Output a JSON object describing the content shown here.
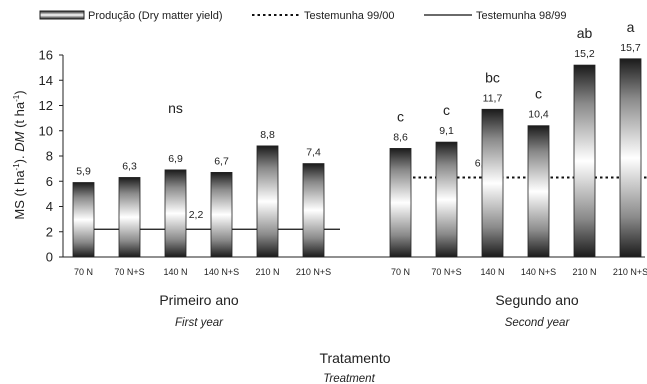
{
  "chart_data": {
    "type": "bar",
    "ylabel": "MS (t ha-1). DM (t ha-1)",
    "ylabel_parts": [
      "MS (t ha",
      "-1",
      "). ",
      "DM",
      " (t ha",
      "-1",
      ")"
    ],
    "ylim": [
      0,
      16
    ],
    "yticks": [
      "0",
      "2",
      "4",
      "6",
      "8",
      "10",
      "12",
      "14",
      "16"
    ],
    "xlabel": "Tratamento",
    "xlabel_en": "Treatment",
    "legend": {
      "position": "top",
      "series": "Produção (Dry matter yield)",
      "ref1": "Testemunha 99/00",
      "ref2": "Testemunha 98/99"
    },
    "groups": [
      {
        "name": "Primeiro ano",
        "name_en": "First year",
        "categories": [
          "70 N",
          "70 N+S",
          "140 N",
          "140 N+S",
          "210 N",
          "210 N+S"
        ],
        "values": [
          5.9,
          6.3,
          6.9,
          6.7,
          8.8,
          7.4
        ],
        "value_labels": [
          "5,9",
          "6,3",
          "6,9",
          "6,7",
          "8,8",
          "7,4"
        ],
        "significance": [
          "",
          "",
          "ns",
          "",
          "",
          ""
        ],
        "reference": {
          "series": "Testemunha 98/99",
          "style": "solid",
          "value": 2.2,
          "label": "2,2"
        }
      },
      {
        "name": "Segundo ano",
        "name_en": "Second year",
        "categories": [
          "70 N",
          "70 N+S",
          "140 N",
          "140 N+S",
          "210 N",
          "210 N+S"
        ],
        "values": [
          8.6,
          9.1,
          11.7,
          10.4,
          15.2,
          15.7
        ],
        "value_labels": [
          "8,6",
          "9,1",
          "11,7",
          "10,4",
          "15,2",
          "15,7"
        ],
        "significance": [
          "c",
          "c",
          "bc",
          "c",
          "ab",
          "a"
        ],
        "reference": {
          "series": "Testemunha 99/00",
          "style": "dashed",
          "value": 6.3,
          "label": "6,3"
        }
      }
    ]
  }
}
